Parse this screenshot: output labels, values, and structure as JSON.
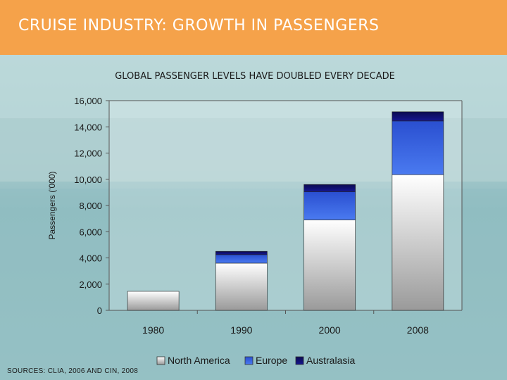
{
  "header": {
    "title": "CRUISE INDUSTRY: GROWTH IN PASSENGERS"
  },
  "source_note": "SOURCES: CLIA, 2006 AND CIN, 2008",
  "colors": {
    "header": "#f5a24a",
    "north_america": "#e8e8e8",
    "europe": "#3a5fd8",
    "australasia": "#10106a"
  },
  "chart_data": {
    "type": "bar",
    "stacked": true,
    "title": "GLOBAL PASSENGER LEVELS HAVE DOUBLED EVERY DECADE",
    "xlabel": "",
    "ylabel": "Passengers ('000)",
    "ylim": [
      0,
      16000
    ],
    "yticks": [
      0,
      2000,
      4000,
      6000,
      8000,
      10000,
      12000,
      14000,
      16000
    ],
    "ytick_labels": [
      "0",
      "2,000",
      "4,000",
      "6,000",
      "8,000",
      "10,000",
      "12,000",
      "14,000",
      "16,000"
    ],
    "categories": [
      "1980",
      "1990",
      "2000",
      "2008"
    ],
    "series": [
      {
        "name": "North America",
        "values": [
          1450,
          3600,
          6900,
          10350
        ]
      },
      {
        "name": "Europe",
        "values": [
          0,
          650,
          2150,
          4100
        ]
      },
      {
        "name": "Australasia",
        "values": [
          0,
          250,
          550,
          700
        ]
      }
    ],
    "legend_position": "bottom"
  }
}
